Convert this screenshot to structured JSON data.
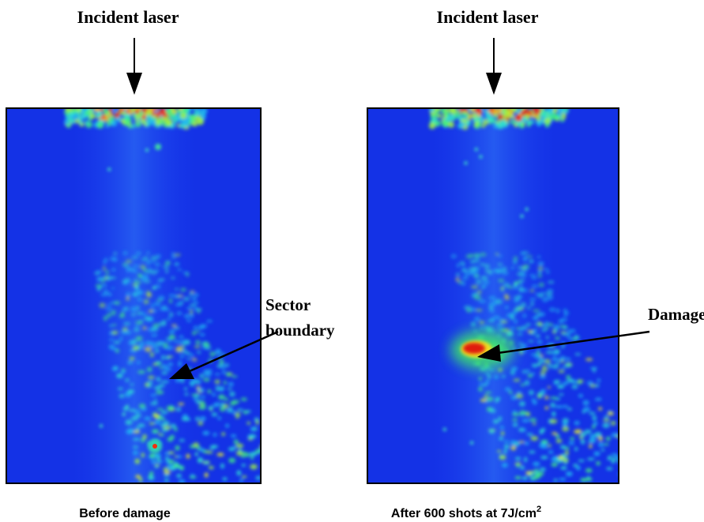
{
  "panels": [
    {
      "header": "Incident laser",
      "annotation": [
        "Sector",
        "boundary"
      ],
      "caption": "Before damage"
    },
    {
      "header": "Incident laser",
      "annotation": [
        "Damage"
      ],
      "caption": "After 600 shots at 7J/cm",
      "caption_sup": "2"
    }
  ]
}
